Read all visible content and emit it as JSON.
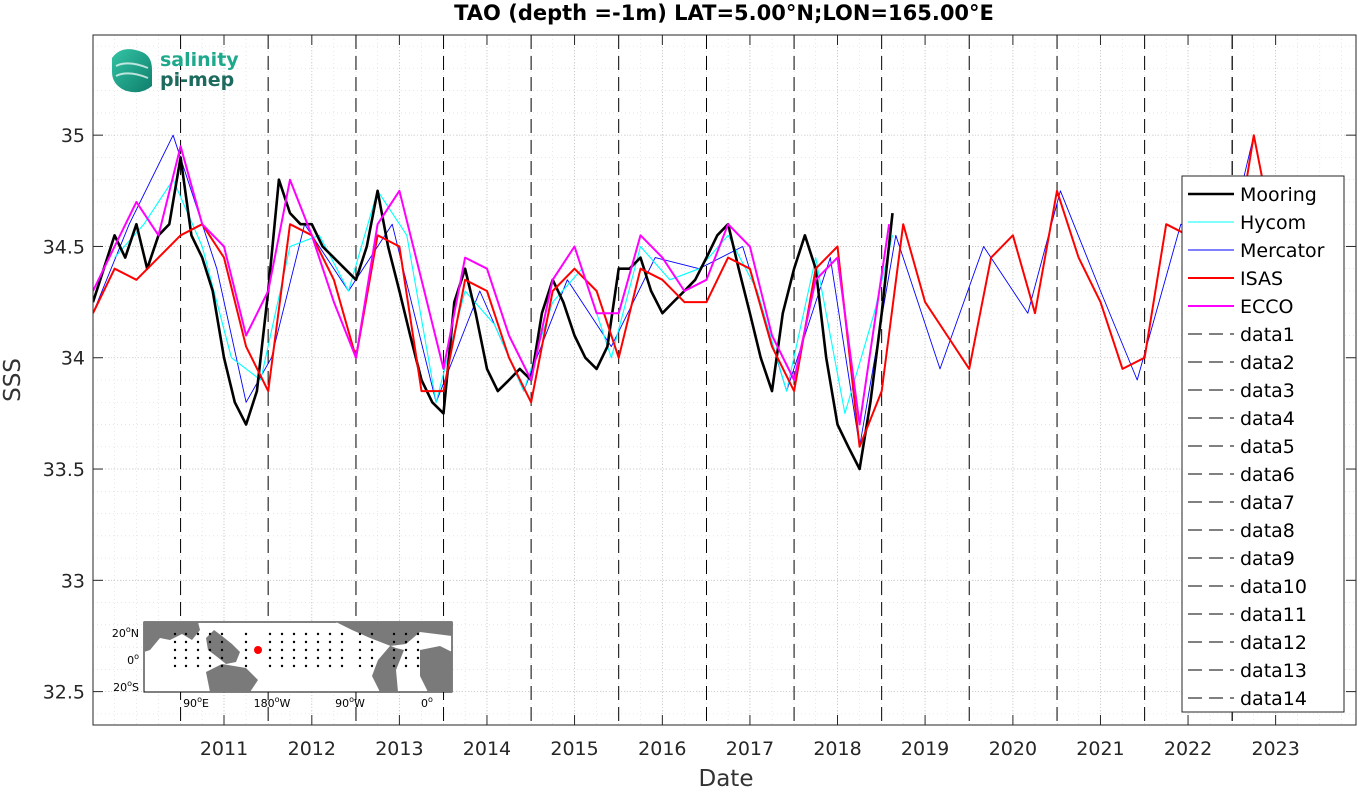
{
  "chart_data": {
    "type": "line",
    "title": "TAO (depth =-1m) LAT=5.00°N;LON=165.00°E",
    "xlabel": "Date",
    "ylabel": "SSS",
    "xlim": [
      "2010-01-01",
      "2024-05-31"
    ],
    "ylim": [
      32.35,
      35.45
    ],
    "x_ticks": [
      "2011",
      "2012",
      "2013",
      "2014",
      "2015",
      "2016",
      "2017",
      "2018",
      "2019",
      "2020",
      "2021",
      "2022",
      "2023"
    ],
    "y_ticks": [
      "32.5",
      "33",
      "33.5",
      "34",
      "34.5",
      "35"
    ],
    "grid": "on",
    "legend_position": "right",
    "vertical_markers": [
      {
        "name": "data1",
        "x": "2011-01-01"
      },
      {
        "name": "data2",
        "x": "2012-01-01"
      },
      {
        "name": "data3",
        "x": "2013-01-01"
      },
      {
        "name": "data4",
        "x": "2014-01-01"
      },
      {
        "name": "data5",
        "x": "2015-01-01"
      },
      {
        "name": "data6",
        "x": "2016-01-01"
      },
      {
        "name": "data7",
        "x": "2017-01-01"
      },
      {
        "name": "data8",
        "x": "2018-01-01"
      },
      {
        "name": "data9",
        "x": "2019-01-01"
      },
      {
        "name": "data10",
        "x": "2020-01-01"
      },
      {
        "name": "data11",
        "x": "2021-01-01"
      },
      {
        "name": "data12",
        "x": "2022-01-01"
      },
      {
        "name": "data13",
        "x": "2023-01-01"
      },
      {
        "name": "data14",
        "x": "2023-01-01"
      }
    ],
    "series": [
      {
        "name": "Mooring",
        "color": "#000000",
        "x": [
          "2010-01-01",
          "2010-02-15",
          "2010-04-01",
          "2010-05-15",
          "2010-07-01",
          "2010-08-15",
          "2010-10-01",
          "2010-11-15",
          "2011-01-01",
          "2011-02-15",
          "2011-04-01",
          "2011-05-15",
          "2011-07-01",
          "2011-08-15",
          "2011-10-01",
          "2011-11-15",
          "2012-01-01",
          "2012-02-15",
          "2012-04-01",
          "2012-05-15",
          "2012-07-01",
          "2012-08-15",
          "2013-01-01",
          "2013-02-15",
          "2013-04-01",
          "2013-05-15",
          "2013-07-01",
          "2013-08-15",
          "2013-10-01",
          "2013-11-15",
          "2014-01-01",
          "2014-02-15",
          "2014-04-01",
          "2014-05-15",
          "2014-07-01",
          "2014-08-15",
          "2014-10-01",
          "2014-11-15",
          "2015-01-01",
          "2015-02-15",
          "2015-04-01",
          "2015-05-15",
          "2015-07-01",
          "2015-08-15",
          "2015-10-01",
          "2015-11-15",
          "2016-01-01",
          "2016-02-15",
          "2016-04-01",
          "2016-05-15",
          "2016-07-01",
          "2016-08-15",
          "2016-10-01",
          "2016-11-15",
          "2017-01-01",
          "2017-02-15",
          "2017-04-01",
          "2017-05-15",
          "2017-07-01",
          "2017-08-15",
          "2017-10-01",
          "2017-11-15",
          "2018-01-01",
          "2018-02-15",
          "2018-04-01",
          "2018-05-15",
          "2018-07-01",
          "2018-08-15",
          "2018-10-01",
          "2018-11-15",
          "2019-01-01",
          "2019-02-15"
        ],
        "y": [
          34.25,
          34.4,
          34.55,
          34.45,
          34.6,
          34.4,
          34.55,
          34.6,
          34.9,
          34.55,
          34.45,
          34.3,
          34.0,
          33.8,
          33.7,
          33.85,
          34.3,
          34.8,
          34.65,
          34.6,
          34.6,
          34.5,
          34.35,
          34.5,
          34.75,
          34.5,
          34.3,
          34.1,
          33.9,
          33.8,
          33.75,
          34.25,
          34.4,
          34.2,
          33.95,
          33.85,
          33.9,
          33.95,
          33.9,
          34.2,
          34.35,
          34.25,
          34.1,
          34.0,
          33.95,
          34.05,
          34.4,
          34.4,
          34.45,
          34.3,
          34.2,
          34.25,
          34.3,
          34.35,
          34.45,
          34.55,
          34.6,
          34.4,
          34.2,
          34.0,
          33.85,
          34.2,
          34.4,
          34.55,
          34.4,
          34.0,
          33.7,
          33.6,
          33.5,
          33.8,
          34.2,
          34.65
        ]
      },
      {
        "name": "Hycom",
        "color": "#00ffff",
        "x": [
          "2010-04-01",
          "2010-08-01",
          "2010-12-01",
          "2011-04-01",
          "2011-08-01",
          "2011-12-01",
          "2012-04-01",
          "2012-08-01",
          "2012-12-01",
          "2013-04-01",
          "2013-08-01",
          "2013-12-01",
          "2014-04-01",
          "2014-08-01",
          "2014-12-01",
          "2015-04-01",
          "2015-08-01",
          "2015-12-01",
          "2016-04-01",
          "2016-08-01",
          "2016-12-01",
          "2017-04-01",
          "2017-08-01",
          "2017-12-01",
          "2018-04-01",
          "2018-08-01",
          "2018-12-01",
          "2019-02-15"
        ],
        "y": [
          34.45,
          34.6,
          34.8,
          34.5,
          34.0,
          33.9,
          34.5,
          34.55,
          34.3,
          34.75,
          34.55,
          33.8,
          34.3,
          34.15,
          33.85,
          34.25,
          34.4,
          34.0,
          34.5,
          34.35,
          34.4,
          34.55,
          34.3,
          33.85,
          34.45,
          33.75,
          34.2,
          34.55
        ]
      },
      {
        "name": "Mercator",
        "color": "#0000ff",
        "x": [
          "2010-01-01",
          "2010-06-01",
          "2010-12-01",
          "2011-06-01",
          "2011-10-01",
          "2012-01-15",
          "2012-06-01",
          "2012-12-01",
          "2013-06-01",
          "2013-12-01",
          "2014-06-01",
          "2014-12-01",
          "2015-06-01",
          "2015-12-01",
          "2016-06-01",
          "2016-12-01",
          "2017-06-01",
          "2017-12-01",
          "2018-06-01",
          "2018-10-01",
          "2019-03-01",
          "2019-09-01",
          "2020-03-01",
          "2020-09-01",
          "2021-01-15",
          "2021-07-01",
          "2021-12-01",
          "2022-06-01",
          "2022-12-01",
          "2023-04-01",
          "2023-07-01"
        ],
        "y": [
          34.2,
          34.6,
          35.0,
          34.4,
          33.8,
          34.0,
          34.6,
          34.3,
          34.6,
          33.8,
          34.3,
          33.85,
          34.35,
          34.05,
          34.45,
          34.4,
          34.5,
          33.85,
          34.45,
          33.6,
          34.55,
          33.95,
          34.5,
          34.2,
          34.75,
          34.3,
          33.9,
          34.6,
          34.45,
          35.0,
          34.5
        ]
      },
      {
        "name": "ISAS",
        "color": "#ff0000",
        "x": [
          "2010-01-01",
          "2010-04-01",
          "2010-07-01",
          "2010-10-01",
          "2011-01-01",
          "2011-04-01",
          "2011-07-01",
          "2011-10-01",
          "2012-01-01",
          "2012-04-01",
          "2012-07-01",
          "2012-10-01",
          "2013-01-01",
          "2013-04-01",
          "2013-07-01",
          "2013-10-01",
          "2014-01-01",
          "2014-04-01",
          "2014-07-01",
          "2014-10-01",
          "2015-01-01",
          "2015-04-01",
          "2015-07-01",
          "2015-10-01",
          "2016-01-01",
          "2016-04-01",
          "2016-07-01",
          "2016-10-01",
          "2017-01-01",
          "2017-04-01",
          "2017-07-01",
          "2017-10-01",
          "2018-01-01",
          "2018-04-01",
          "2018-07-01",
          "2018-10-01",
          "2019-01-01",
          "2019-04-01",
          "2019-07-01",
          "2019-10-01",
          "2020-01-01",
          "2020-04-01",
          "2020-07-01",
          "2020-10-01",
          "2021-01-01",
          "2021-04-01",
          "2021-07-01",
          "2021-10-01",
          "2022-01-01",
          "2022-04-01",
          "2022-07-01",
          "2022-10-01",
          "2023-01-01",
          "2023-04-01",
          "2023-07-01"
        ],
        "y": [
          34.2,
          34.4,
          34.35,
          34.45,
          34.55,
          34.6,
          34.45,
          34.05,
          33.85,
          34.6,
          34.55,
          34.35,
          34.0,
          34.55,
          34.5,
          33.85,
          33.85,
          34.35,
          34.3,
          34.0,
          33.8,
          34.3,
          34.4,
          34.3,
          34.0,
          34.4,
          34.35,
          34.25,
          34.25,
          34.45,
          34.4,
          34.05,
          33.85,
          34.4,
          34.5,
          33.6,
          33.85,
          34.6,
          34.25,
          34.1,
          33.95,
          34.45,
          34.55,
          34.2,
          34.75,
          34.45,
          34.25,
          33.95,
          34.0,
          34.6,
          34.55,
          34.55,
          34.4,
          35.0,
          34.5
        ]
      },
      {
        "name": "ECCO",
        "color": "#ff00ff",
        "x": [
          "2010-01-01",
          "2010-04-01",
          "2010-07-01",
          "2010-10-01",
          "2011-01-01",
          "2011-04-01",
          "2011-07-01",
          "2011-10-01",
          "2012-01-01",
          "2012-04-01",
          "2012-07-01",
          "2012-10-01",
          "2013-01-01",
          "2013-04-01",
          "2013-07-01",
          "2013-10-01",
          "2014-01-01",
          "2014-04-01",
          "2014-07-01",
          "2014-10-01",
          "2015-01-01",
          "2015-04-01",
          "2015-07-01",
          "2015-10-01",
          "2016-01-01",
          "2016-04-01",
          "2016-07-01",
          "2016-10-01",
          "2017-01-01",
          "2017-04-01",
          "2017-07-01",
          "2017-10-01",
          "2018-01-01",
          "2018-04-01",
          "2018-07-01",
          "2018-10-01",
          "2019-02-01"
        ],
        "y": [
          34.3,
          34.5,
          34.7,
          34.55,
          34.95,
          34.6,
          34.5,
          34.1,
          34.3,
          34.8,
          34.55,
          34.25,
          34.0,
          34.6,
          34.75,
          34.35,
          33.95,
          34.45,
          34.4,
          34.1,
          33.9,
          34.35,
          34.5,
          34.2,
          34.2,
          34.55,
          34.45,
          34.3,
          34.35,
          34.6,
          34.5,
          34.1,
          33.9,
          34.35,
          34.45,
          33.7,
          34.6
        ]
      }
    ]
  },
  "logo": {
    "line1": "salinity",
    "line2": "pi-mep"
  },
  "inset_map": {
    "y_labels": [
      "20",
      "0",
      "20"
    ],
    "y_suffix": [
      "N",
      "",
      "S"
    ],
    "x_labels": [
      "90",
      "180",
      "90",
      "0"
    ],
    "x_suffix": [
      "E",
      "W",
      "W",
      ""
    ]
  }
}
